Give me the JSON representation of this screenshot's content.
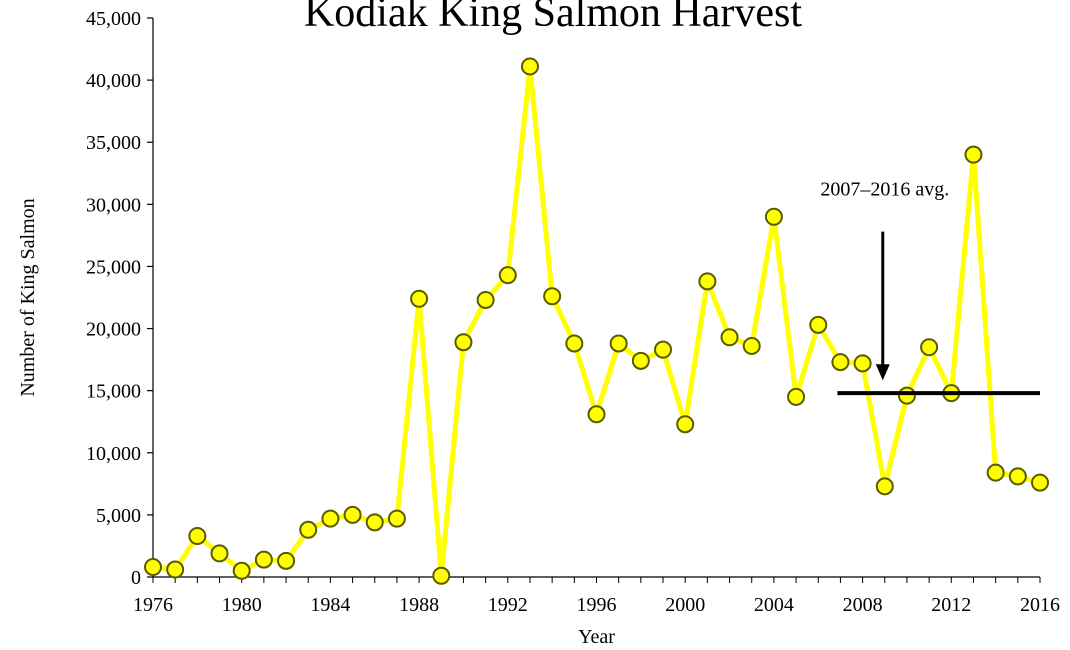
{
  "chart_data": {
    "type": "line",
    "title": "Kodiak King Salmon Harvest",
    "xlabel": "Year",
    "ylabel": "Number of King Salmon",
    "xlim": [
      1976,
      2016
    ],
    "ylim": [
      0,
      45000
    ],
    "x_ticks": [
      "1976",
      "1980",
      "1984",
      "1988",
      "1992",
      "1996",
      "2000",
      "2004",
      "2008",
      "2012",
      "2016"
    ],
    "y_ticks": [
      "0",
      "5,000",
      "10,000",
      "15,000",
      "20,000",
      "25,000",
      "30,000",
      "35,000",
      "40,000",
      "45,000"
    ],
    "grid": false,
    "line_color": "#ffff00",
    "marker_color": "#ffff00",
    "marker_edge_color": "#5a5a00",
    "series": [
      {
        "x": [
          1976,
          1977,
          1978,
          1979,
          1980,
          1981,
          1982,
          1983,
          1984,
          1985,
          1986,
          1987,
          1988,
          1989,
          1990,
          1991,
          1992,
          1993,
          1994,
          1995,
          1996,
          1997,
          1998,
          1999,
          2000,
          2001,
          2002,
          2003,
          2004,
          2005,
          2006,
          2007,
          2008,
          2009,
          2010,
          2011,
          2012,
          2013,
          2014,
          2015,
          2016
        ],
        "values": [
          800,
          600,
          3300,
          1900,
          500,
          1400,
          1300,
          3800,
          4700,
          5000,
          4400,
          4700,
          22400,
          100,
          18900,
          22300,
          24300,
          41100,
          22600,
          18800,
          13100,
          18800,
          17400,
          18300,
          12300,
          23800,
          19300,
          18600,
          29000,
          14500,
          20300,
          17300,
          17200,
          7300,
          14600,
          18500,
          14800,
          34000,
          8400,
          8100,
          7600
        ]
      }
    ],
    "reference_line": {
      "value": 14800,
      "x_start": 2007,
      "x_end": 2016,
      "color": "#000000"
    },
    "annotation": {
      "text": "2007–2016 avg.",
      "arrow_x": 2009,
      "arrow_from": 27800,
      "arrow_to": 16000
    }
  }
}
